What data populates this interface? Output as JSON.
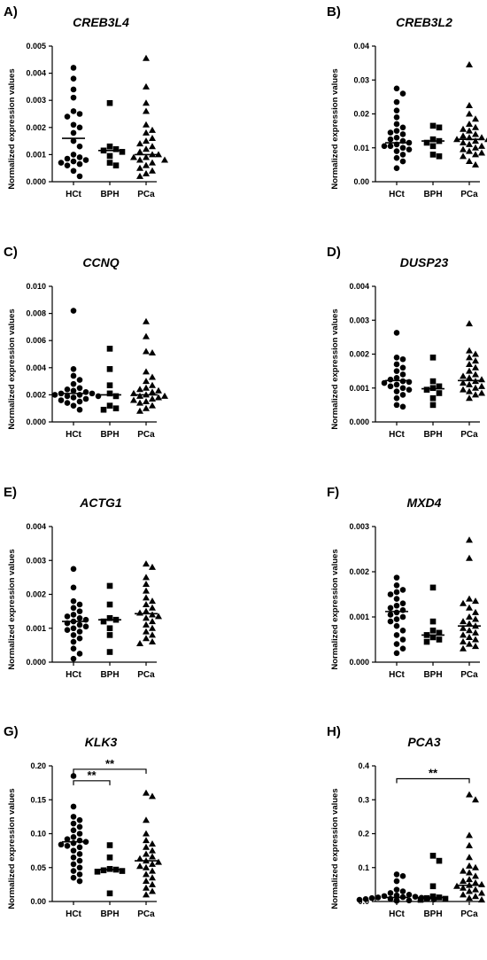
{
  "chart_data": [
    {
      "type": "scatter",
      "panel": "A)",
      "title": "CREB3L4",
      "ylabel": "Normalized expression values",
      "categories": [
        "HCt",
        "BPH",
        "PCa"
      ],
      "ylim": [
        0,
        0.005
      ],
      "yticks": [
        "0.000",
        "0.001",
        "0.002",
        "0.003",
        "0.004",
        "0.005"
      ],
      "series": [
        {
          "category": "HCt",
          "marker": "circle",
          "median": 0.0016,
          "values": [
            0.0042,
            0.0038,
            0.0034,
            0.0031,
            0.0026,
            0.0025,
            0.0024,
            0.0021,
            0.002,
            0.0018,
            0.0015,
            0.0013,
            0.001,
            0.0009,
            0.00085,
            0.0008,
            0.00075,
            0.0007,
            0.00065,
            0.0006,
            0.0004,
            0.0002
          ]
        },
        {
          "category": "BPH",
          "marker": "square",
          "median": 0.00115,
          "values": [
            0.0029,
            0.0013,
            0.0012,
            0.00115,
            0.0011,
            0.00095,
            0.0007,
            0.0006
          ]
        },
        {
          "category": "PCa",
          "marker": "triangle",
          "median": 0.001,
          "values": [
            0.00455,
            0.0035,
            0.0029,
            0.0026,
            0.0021,
            0.0019,
            0.0018,
            0.0016,
            0.0015,
            0.0014,
            0.0013,
            0.0012,
            0.0011,
            0.001,
            0.001,
            0.0009,
            0.0009,
            0.0008,
            0.0008,
            0.0007,
            0.0006,
            0.0005,
            0.0004,
            0.0003,
            0.0002
          ]
        }
      ],
      "significance": []
    },
    {
      "type": "scatter",
      "panel": "B)",
      "title": "CREB3L2",
      "ylabel": "Normalized expression values",
      "categories": [
        "HCt",
        "BPH",
        "PCa"
      ],
      "ylim": [
        0,
        0.04
      ],
      "yticks": [
        "0.00",
        "0.01",
        "0.02",
        "0.03",
        "0.04"
      ],
      "series": [
        {
          "category": "HCt",
          "marker": "circle",
          "median": 0.0115,
          "values": [
            0.0275,
            0.026,
            0.0235,
            0.021,
            0.019,
            0.017,
            0.016,
            0.015,
            0.0145,
            0.014,
            0.013,
            0.0125,
            0.012,
            0.0115,
            0.011,
            0.0105,
            0.0105,
            0.01,
            0.0095,
            0.009,
            0.008,
            0.007,
            0.006,
            0.004
          ]
        },
        {
          "category": "BPH",
          "marker": "square",
          "median": 0.012,
          "values": [
            0.0165,
            0.016,
            0.0125,
            0.012,
            0.0115,
            0.0105,
            0.008,
            0.0075
          ]
        },
        {
          "category": "PCa",
          "marker": "triangle",
          "median": 0.0125,
          "values": [
            0.0345,
            0.0225,
            0.02,
            0.0185,
            0.017,
            0.016,
            0.0155,
            0.015,
            0.014,
            0.0135,
            0.013,
            0.013,
            0.0125,
            0.0125,
            0.012,
            0.0115,
            0.011,
            0.0105,
            0.01,
            0.0095,
            0.009,
            0.0085,
            0.008,
            0.0075,
            0.006,
            0.005
          ]
        }
      ],
      "significance": []
    },
    {
      "type": "scatter",
      "panel": "C)",
      "title": "CCNQ",
      "ylabel": "Normalized expression values",
      "categories": [
        "HCt",
        "BPH",
        "PCa"
      ],
      "ylim": [
        0,
        0.01
      ],
      "yticks": [
        "0.000",
        "0.002",
        "0.004",
        "0.006",
        "0.008",
        "0.010"
      ],
      "series": [
        {
          "category": "HCt",
          "marker": "circle",
          "median": 0.0021,
          "values": [
            0.0082,
            0.0039,
            0.0034,
            0.0031,
            0.0028,
            0.0025,
            0.0024,
            0.0023,
            0.0022,
            0.0021,
            0.0021,
            0.002,
            0.002,
            0.0019,
            0.0019,
            0.0018,
            0.0017,
            0.0016,
            0.0015,
            0.0014,
            0.0012,
            0.0009
          ]
        },
        {
          "category": "BPH",
          "marker": "square",
          "median": 0.002,
          "values": [
            0.0054,
            0.0039,
            0.0027,
            0.0021,
            0.0019,
            0.0012,
            0.001,
            0.0009
          ]
        },
        {
          "category": "PCa",
          "marker": "triangle",
          "median": 0.002,
          "values": [
            0.0074,
            0.0063,
            0.0052,
            0.0051,
            0.0037,
            0.0033,
            0.003,
            0.0027,
            0.0025,
            0.0024,
            0.0023,
            0.0022,
            0.0021,
            0.002,
            0.0019,
            0.0019,
            0.0018,
            0.0017,
            0.0016,
            0.0015,
            0.0014,
            0.0012,
            0.001,
            0.0008
          ]
        }
      ],
      "significance": []
    },
    {
      "type": "scatter",
      "panel": "D)",
      "title": "DUSP23",
      "ylabel": "Normalized expression values",
      "categories": [
        "HCt",
        "BPH",
        "PCa"
      ],
      "ylim": [
        0,
        0.004
      ],
      "yticks": [
        "0.000",
        "0.001",
        "0.002",
        "0.003",
        "0.004"
      ],
      "series": [
        {
          "category": "HCt",
          "marker": "circle",
          "median": 0.00122,
          "values": [
            0.00263,
            0.0019,
            0.00185,
            0.0017,
            0.0016,
            0.0015,
            0.0014,
            0.0013,
            0.00125,
            0.0012,
            0.00118,
            0.00115,
            0.0011,
            0.00105,
            0.001,
            0.00095,
            0.0009,
            0.0008,
            0.0007,
            0.0005,
            0.00045
          ]
        },
        {
          "category": "BPH",
          "marker": "square",
          "median": 0.00098,
          "values": [
            0.0019,
            0.0012,
            0.00105,
            0.001,
            0.00095,
            0.00085,
            0.0007,
            0.0005
          ]
        },
        {
          "category": "PCa",
          "marker": "triangle",
          "median": 0.00122,
          "values": [
            0.0029,
            0.0021,
            0.002,
            0.0019,
            0.0018,
            0.0017,
            0.0016,
            0.0015,
            0.0014,
            0.00135,
            0.0013,
            0.00125,
            0.0012,
            0.00115,
            0.0011,
            0.00105,
            0.001,
            0.00095,
            0.0009,
            0.00085,
            0.0008,
            0.0007
          ]
        }
      ],
      "significance": []
    },
    {
      "type": "scatter",
      "panel": "E)",
      "title": "ACTG1",
      "ylabel": "Normalized expression values",
      "categories": [
        "HCt",
        "BPH",
        "PCa"
      ],
      "ylim": [
        0,
        0.004
      ],
      "yticks": [
        "0.000",
        "0.001",
        "0.002",
        "0.003",
        "0.004"
      ],
      "series": [
        {
          "category": "HCt",
          "marker": "circle",
          "median": 0.0012,
          "values": [
            0.00275,
            0.0022,
            0.0018,
            0.0017,
            0.0016,
            0.0015,
            0.0014,
            0.00135,
            0.0013,
            0.00125,
            0.0012,
            0.00115,
            0.0011,
            0.00105,
            0.001,
            0.00095,
            0.0009,
            0.0008,
            0.0007,
            0.0006,
            0.0004,
            0.00025,
            0.0001
          ]
        },
        {
          "category": "BPH",
          "marker": "square",
          "median": 0.00125,
          "values": [
            0.00225,
            0.0017,
            0.0013,
            0.00125,
            0.0012,
            0.001,
            0.0008,
            0.0003
          ]
        },
        {
          "category": "PCa",
          "marker": "triangle",
          "median": 0.00143,
          "values": [
            0.0029,
            0.0028,
            0.0025,
            0.0023,
            0.0021,
            0.0019,
            0.0018,
            0.0017,
            0.0016,
            0.0015,
            0.00145,
            0.0014,
            0.00135,
            0.0013,
            0.0012,
            0.0011,
            0.001,
            0.0009,
            0.0008,
            0.0007,
            0.0006,
            0.00055
          ]
        }
      ],
      "significance": []
    },
    {
      "type": "scatter",
      "panel": "F)",
      "title": "MXD4",
      "ylabel": "Normalized expression values",
      "categories": [
        "HCt",
        "BPH",
        "PCa"
      ],
      "ylim": [
        0,
        0.003
      ],
      "yticks": [
        "0.000",
        "0.001",
        "0.002",
        "0.003"
      ],
      "series": [
        {
          "category": "HCt",
          "marker": "circle",
          "median": 0.00112,
          "values": [
            0.00187,
            0.0017,
            0.0016,
            0.00155,
            0.0015,
            0.0014,
            0.0013,
            0.00125,
            0.0012,
            0.00115,
            0.0011,
            0.00105,
            0.001,
            0.00095,
            0.0009,
            0.0008,
            0.0007,
            0.0006,
            0.0005,
            0.0004,
            0.0003,
            0.0002
          ]
        },
        {
          "category": "BPH",
          "marker": "square",
          "median": 0.0006,
          "values": [
            0.00165,
            0.0009,
            0.0007,
            0.00065,
            0.0006,
            0.00055,
            0.0005,
            0.00045
          ]
        },
        {
          "category": "PCa",
          "marker": "triangle",
          "median": 0.0008,
          "values": [
            0.0027,
            0.0023,
            0.0014,
            0.00135,
            0.0013,
            0.0012,
            0.0011,
            0.001,
            0.00095,
            0.0009,
            0.00085,
            0.0008,
            0.00075,
            0.0007,
            0.00065,
            0.0006,
            0.00055,
            0.0005,
            0.00045,
            0.0004,
            0.00035,
            0.0003
          ]
        }
      ],
      "significance": []
    },
    {
      "type": "scatter",
      "panel": "G)",
      "title": "KLK3",
      "ylabel": "Normalized expression values",
      "categories": [
        "HCt",
        "BPH",
        "PCa"
      ],
      "ylim": [
        0,
        0.2
      ],
      "yticks": [
        "0.00",
        "0.05",
        "0.10",
        "0.15",
        "0.20"
      ],
      "series": [
        {
          "category": "HCt",
          "marker": "circle",
          "median": 0.088,
          "values": [
            0.185,
            0.14,
            0.125,
            0.12,
            0.115,
            0.11,
            0.105,
            0.1,
            0.095,
            0.092,
            0.09,
            0.088,
            0.086,
            0.084,
            0.082,
            0.08,
            0.075,
            0.07,
            0.065,
            0.06,
            0.055,
            0.05,
            0.045,
            0.04,
            0.035,
            0.03
          ]
        },
        {
          "category": "BPH",
          "marker": "square",
          "median": 0.047,
          "values": [
            0.083,
            0.065,
            0.048,
            0.047,
            0.046,
            0.045,
            0.044,
            0.012
          ]
        },
        {
          "category": "PCa",
          "marker": "triangle",
          "median": 0.06,
          "values": [
            0.16,
            0.155,
            0.12,
            0.1,
            0.09,
            0.085,
            0.08,
            0.075,
            0.07,
            0.066,
            0.063,
            0.06,
            0.058,
            0.055,
            0.052,
            0.05,
            0.045,
            0.04,
            0.035,
            0.03,
            0.025,
            0.02,
            0.015,
            0.01
          ]
        }
      ],
      "significance": [
        {
          "from": "HCt",
          "to": "PCa",
          "y": 0.195,
          "label": "**"
        },
        {
          "from": "HCt",
          "to": "BPH",
          "y": 0.178,
          "label": "**"
        }
      ]
    },
    {
      "type": "scatter",
      "panel": "H)",
      "title": "PCA3",
      "ylabel": "Normalized expression values",
      "categories": [
        "HCt",
        "BPH",
        "PCa"
      ],
      "ylim": [
        0,
        0.4
      ],
      "yticks": [
        "0.0",
        "0.1",
        "0.2",
        "0.3",
        "0.4"
      ],
      "series": [
        {
          "category": "HCt",
          "marker": "circle",
          "median": 0.012,
          "values": [
            0.08,
            0.075,
            0.06,
            0.035,
            0.03,
            0.025,
            0.02,
            0.018,
            0.016,
            0.014,
            0.013,
            0.012,
            0.011,
            0.01,
            0.009,
            0.008,
            0.007,
            0.006,
            0.005,
            0.004,
            0.003,
            0.002
          ]
        },
        {
          "category": "BPH",
          "marker": "square",
          "median": 0.012,
          "values": [
            0.135,
            0.12,
            0.045,
            0.015,
            0.012,
            0.01,
            0.008,
            0.005
          ]
        },
        {
          "category": "PCa",
          "marker": "triangle",
          "median": 0.048,
          "values": [
            0.315,
            0.3,
            0.195,
            0.165,
            0.13,
            0.105,
            0.1,
            0.09,
            0.085,
            0.075,
            0.065,
            0.06,
            0.055,
            0.05,
            0.048,
            0.045,
            0.04,
            0.035,
            0.03,
            0.025,
            0.02,
            0.015,
            0.01,
            0.005
          ]
        }
      ],
      "significance": [
        {
          "from": "HCt",
          "to": "PCa",
          "y": 0.362,
          "label": "**"
        }
      ]
    }
  ]
}
